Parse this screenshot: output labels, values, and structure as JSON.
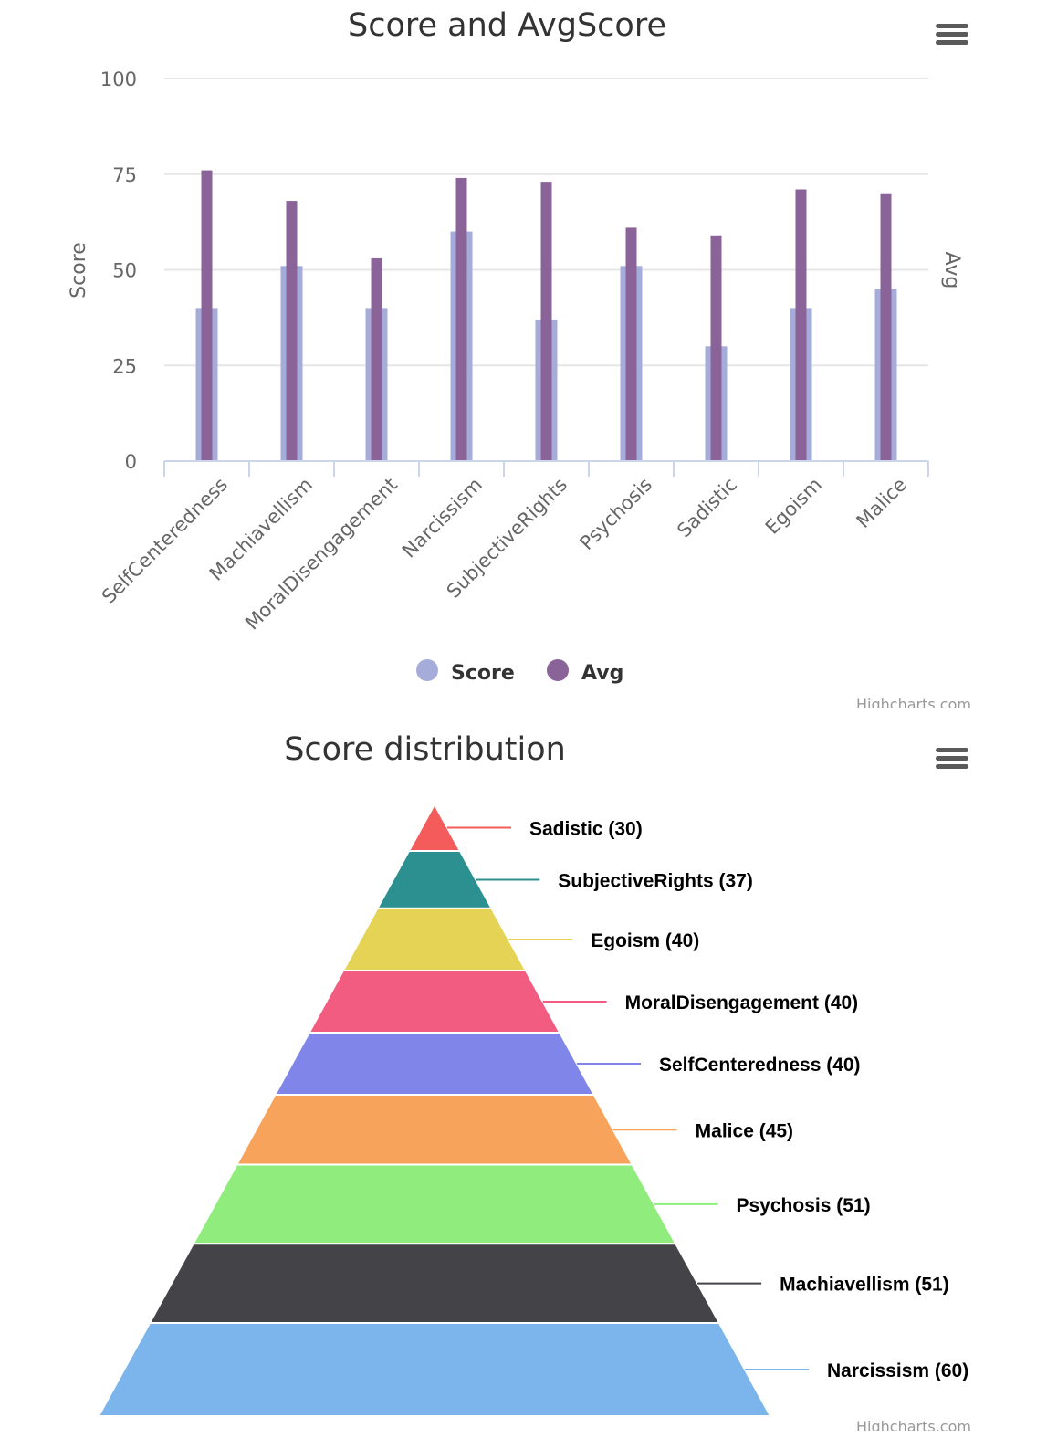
{
  "chart_data": [
    {
      "type": "bar",
      "title": "Score and AvgScore",
      "ylabel": "Score",
      "y2label": "Avg",
      "ylim": [
        0,
        100
      ],
      "yticks": [
        0,
        25,
        50,
        75,
        100
      ],
      "categories": [
        "SelfCenteredness",
        "Machiavellism",
        "MoralDisengagement",
        "Narcissism",
        "SubjectiveRights",
        "Psychosis",
        "Sadistic",
        "Egoism",
        "Malice"
      ],
      "series": [
        {
          "name": "Score",
          "color": "#a6acda",
          "values": [
            40,
            51,
            40,
            60,
            37,
            51,
            30,
            40,
            45
          ]
        },
        {
          "name": "Avg",
          "color": "#8a6398",
          "values": [
            76,
            68,
            53,
            74,
            73,
            61,
            59,
            71,
            70
          ]
        }
      ],
      "legend": "bottom-center",
      "credits": "Highcharts.com"
    },
    {
      "type": "pyramid",
      "title": "Score distribution",
      "slices": [
        {
          "name": "Sadistic",
          "value": 30,
          "label": "Sadistic (30)",
          "color": "#f45b5b"
        },
        {
          "name": "SubjectiveRights",
          "value": 37,
          "label": "SubjectiveRights (37)",
          "color": "#2b908f"
        },
        {
          "name": "Egoism",
          "value": 40,
          "label": "Egoism (40)",
          "color": "#e4d354"
        },
        {
          "name": "MoralDisengagement",
          "value": 40,
          "label": "MoralDisengagement (40)",
          "color": "#f15c80"
        },
        {
          "name": "SelfCenteredness",
          "value": 40,
          "label": "SelfCenteredness (40)",
          "color": "#8085e9"
        },
        {
          "name": "Malice",
          "value": 45,
          "label": "Malice (45)",
          "color": "#f7a35c"
        },
        {
          "name": "Psychosis",
          "value": 51,
          "label": "Psychosis (51)",
          "color": "#90ed7d"
        },
        {
          "name": "Machiavellism",
          "value": 51,
          "label": "Machiavellism (51)",
          "color": "#434348"
        },
        {
          "name": "Narcissism",
          "value": 60,
          "label": "Narcissism (60)",
          "color": "#7cb5ec"
        }
      ],
      "credits": "Highcharts.com"
    }
  ],
  "icons": {
    "menu": "hamburger-menu-icon"
  }
}
